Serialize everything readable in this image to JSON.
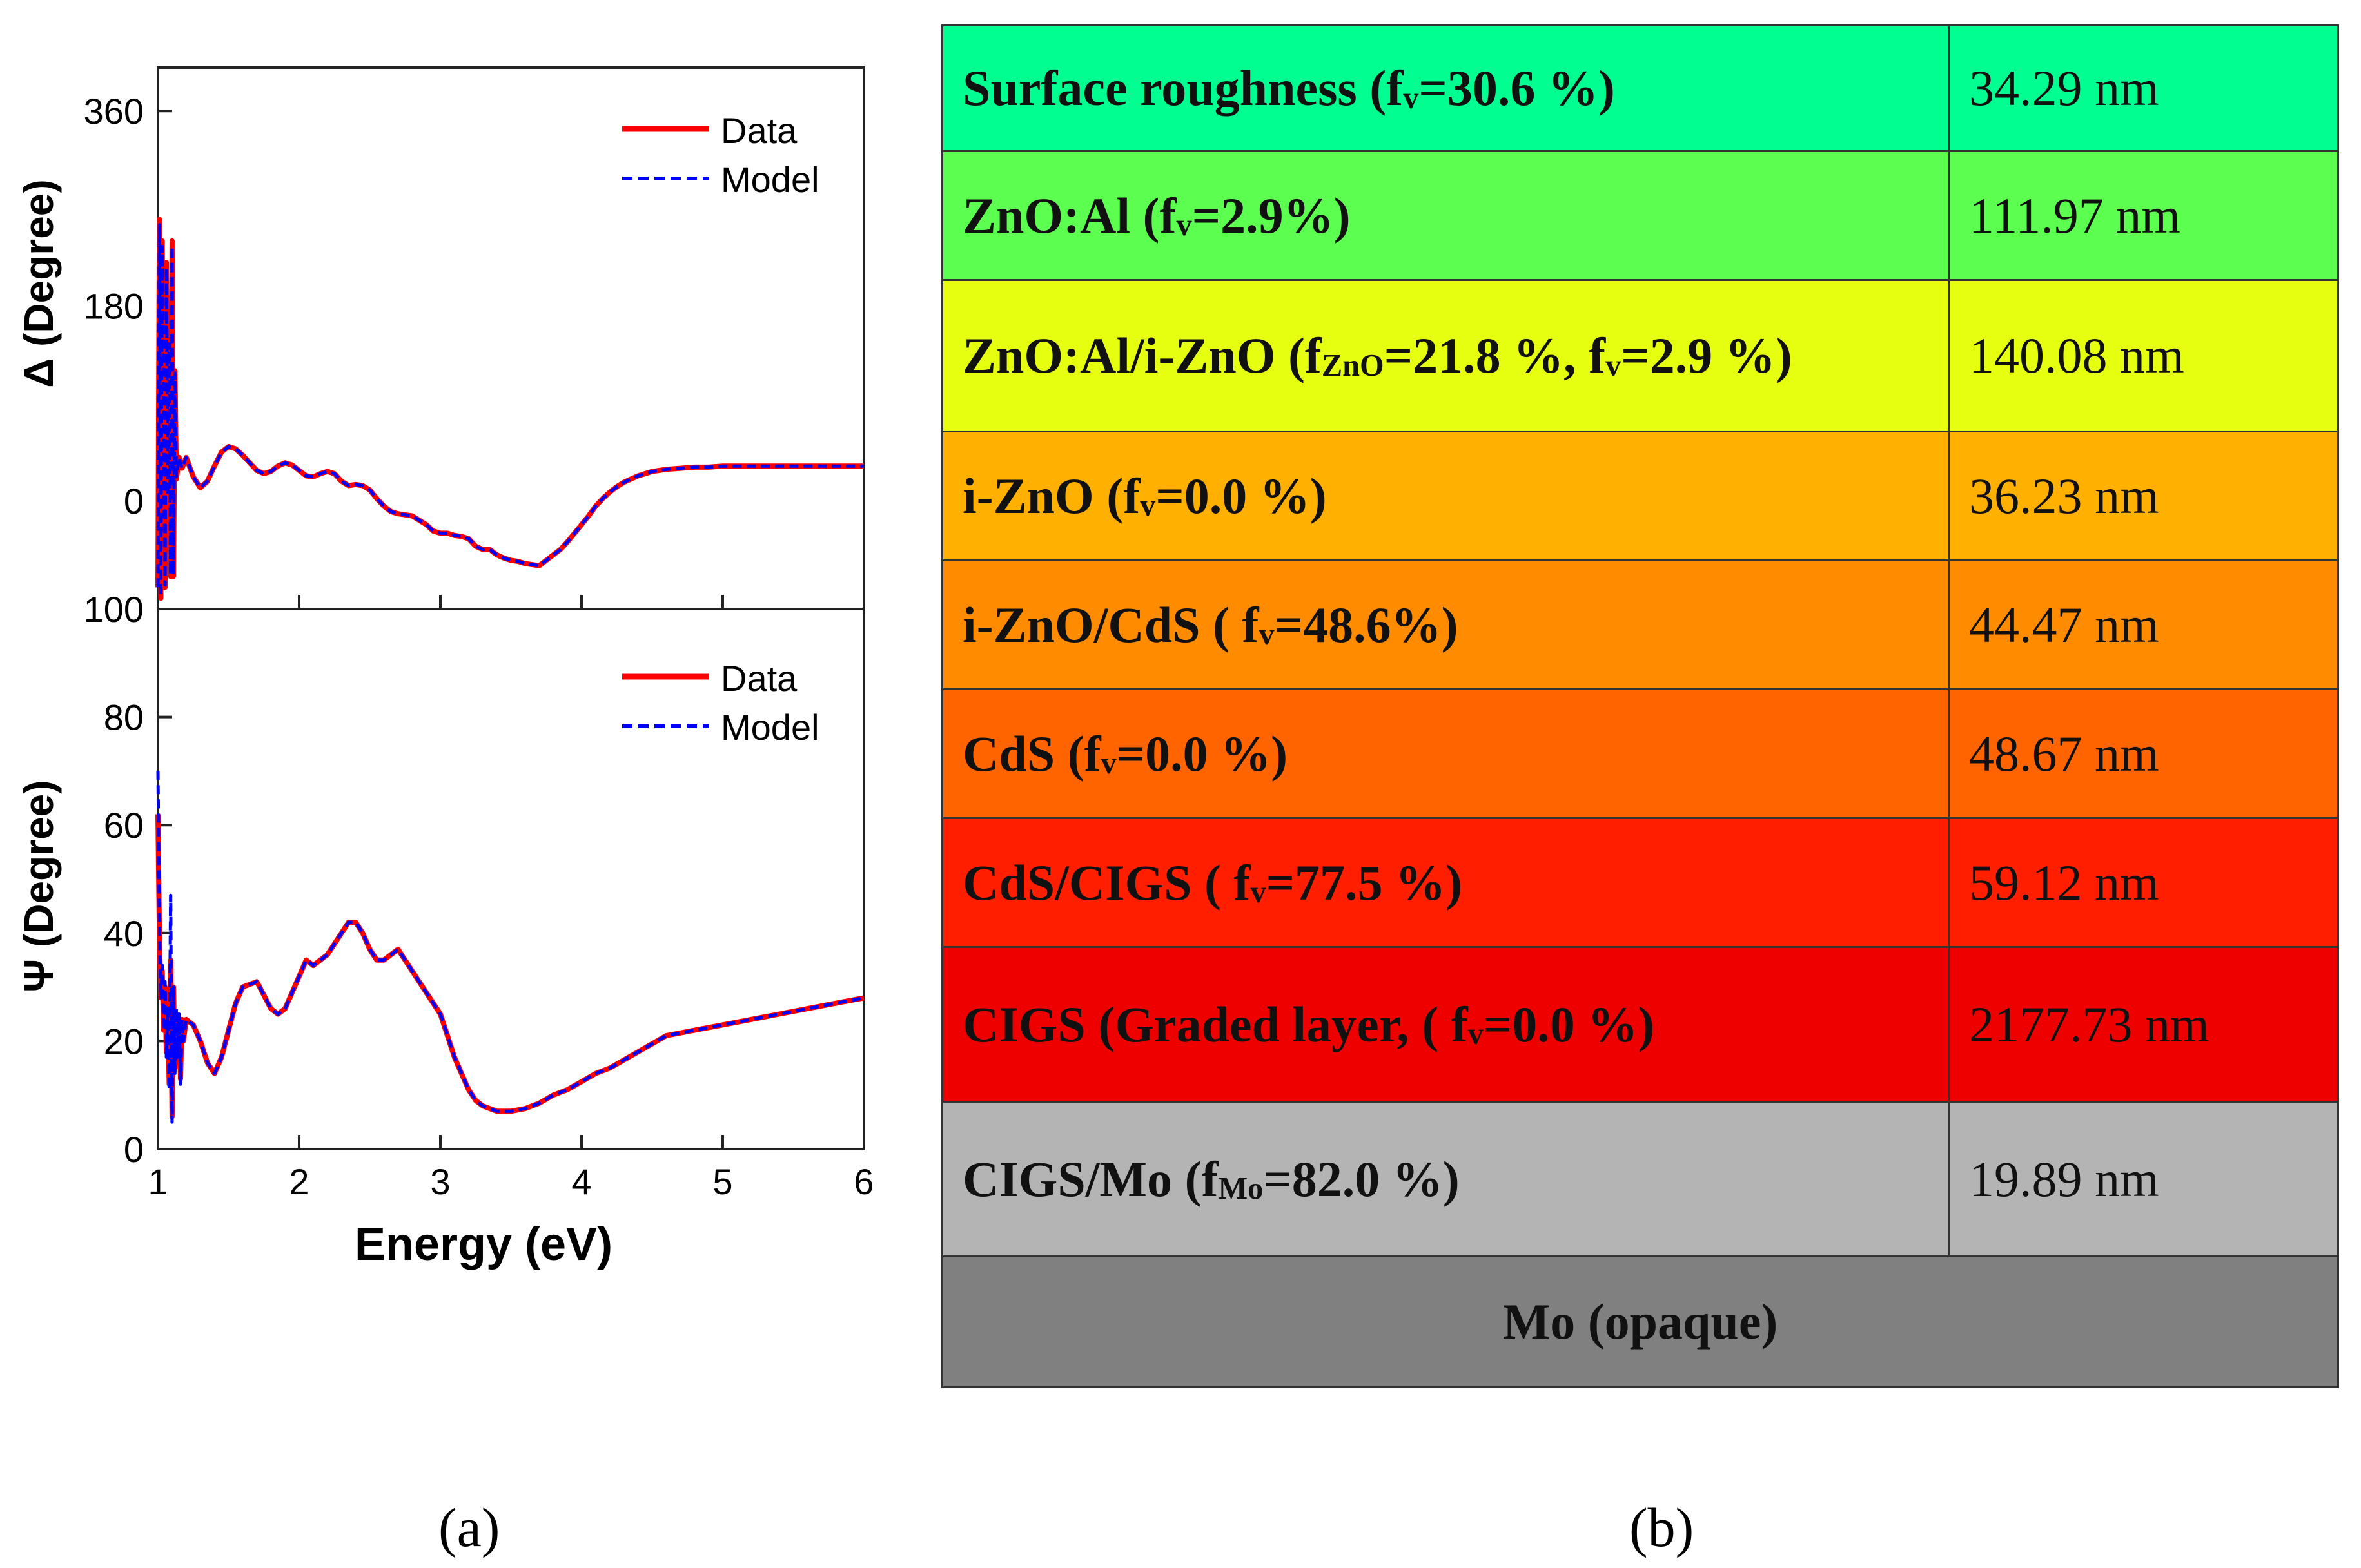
{
  "panel_labels": {
    "a": "(a)",
    "b": "(b)"
  },
  "chart_data": [
    {
      "type": "line",
      "panel": "a-top",
      "title": "",
      "xlabel": "",
      "ylabel": "Δ (Degree)",
      "xlim": [
        1,
        6
      ],
      "ylim": [
        -100,
        400
      ],
      "yticks": [
        0,
        180,
        360
      ],
      "ytick_labels": [
        "0",
        "180",
        "360"
      ],
      "legend": {
        "position": "top-right",
        "entries": [
          "Data",
          "Model"
        ]
      },
      "series": [
        {
          "name": "Data",
          "color": "#ff0000",
          "style": "solid",
          "x": [
            1.0,
            1.01,
            1.02,
            1.03,
            1.04,
            1.05,
            1.06,
            1.07,
            1.08,
            1.09,
            1.1,
            1.11,
            1.12,
            1.13,
            1.15,
            1.17,
            1.2,
            1.25,
            1.3,
            1.35,
            1.4,
            1.45,
            1.5,
            1.55,
            1.6,
            1.65,
            1.7,
            1.75,
            1.8,
            1.85,
            1.9,
            1.95,
            2.0,
            2.05,
            2.1,
            2.15,
            2.2,
            2.25,
            2.3,
            2.35,
            2.4,
            2.45,
            2.5,
            2.55,
            2.6,
            2.65,
            2.7,
            2.75,
            2.8,
            2.85,
            2.9,
            2.95,
            3.0,
            3.05,
            3.1,
            3.15,
            3.2,
            3.25,
            3.3,
            3.35,
            3.4,
            3.45,
            3.5,
            3.55,
            3.6,
            3.65,
            3.7,
            3.75,
            3.8,
            3.85,
            3.9,
            3.95,
            4.0,
            4.05,
            4.1,
            4.15,
            4.2,
            4.25,
            4.3,
            4.35,
            4.4,
            4.45,
            4.5,
            4.6,
            4.7,
            4.8,
            4.9,
            5.0,
            5.2,
            5.4,
            5.6,
            5.8,
            6.0
          ],
          "y": [
            -80,
            260,
            -90,
            240,
            40,
            -80,
            220,
            0,
            150,
            -70,
            240,
            -70,
            120,
            20,
            40,
            30,
            40,
            22,
            12,
            18,
            32,
            45,
            50,
            48,
            42,
            35,
            28,
            25,
            27,
            32,
            35,
            33,
            28,
            23,
            22,
            25,
            27,
            25,
            18,
            14,
            15,
            14,
            10,
            2,
            -5,
            -10,
            -12,
            -13,
            -14,
            -18,
            -22,
            -28,
            -30,
            -30,
            -32,
            -33,
            -35,
            -42,
            -45,
            -45,
            -50,
            -53,
            -55,
            -56,
            -58,
            -59,
            -60,
            -55,
            -50,
            -45,
            -38,
            -30,
            -22,
            -14,
            -5,
            2,
            8,
            13,
            17,
            20,
            23,
            25,
            27,
            29,
            30,
            31,
            31,
            32,
            32,
            32,
            32,
            32,
            32
          ]
        },
        {
          "name": "Model",
          "color": "#0000ff",
          "style": "dashed",
          "x": [
            1.0,
            1.01,
            1.02,
            1.03,
            1.04,
            1.05,
            1.06,
            1.07,
            1.08,
            1.09,
            1.1,
            1.11,
            1.12,
            1.13,
            1.15,
            1.17,
            1.2,
            1.25,
            1.3,
            1.35,
            1.4,
            1.45,
            1.5,
            1.55,
            1.6,
            1.65,
            1.7,
            1.75,
            1.8,
            1.85,
            1.9,
            1.95,
            2.0,
            2.05,
            2.1,
            2.15,
            2.2,
            2.25,
            2.3,
            2.35,
            2.4,
            2.45,
            2.5,
            2.55,
            2.6,
            2.65,
            2.7,
            2.75,
            2.8,
            2.85,
            2.9,
            2.95,
            3.0,
            3.05,
            3.1,
            3.15,
            3.2,
            3.25,
            3.3,
            3.35,
            3.4,
            3.45,
            3.5,
            3.55,
            3.6,
            3.65,
            3.7,
            3.75,
            3.8,
            3.85,
            3.9,
            3.95,
            4.0,
            4.05,
            4.1,
            4.15,
            4.2,
            4.25,
            4.3,
            4.35,
            4.4,
            4.45,
            4.5,
            4.6,
            4.7,
            4.8,
            4.9,
            5.0,
            5.2,
            5.4,
            5.6,
            5.8,
            6.0
          ],
          "y": [
            -80,
            255,
            -88,
            235,
            45,
            -78,
            215,
            5,
            145,
            -68,
            235,
            -68,
            118,
            22,
            40,
            30,
            40,
            22,
            12,
            18,
            32,
            45,
            50,
            48,
            42,
            35,
            28,
            25,
            27,
            32,
            35,
            33,
            28,
            23,
            22,
            25,
            27,
            25,
            18,
            14,
            15,
            14,
            10,
            2,
            -5,
            -10,
            -12,
            -13,
            -14,
            -18,
            -22,
            -28,
            -30,
            -30,
            -32,
            -33,
            -35,
            -42,
            -45,
            -45,
            -50,
            -53,
            -55,
            -56,
            -58,
            -59,
            -60,
            -55,
            -50,
            -45,
            -38,
            -30,
            -22,
            -14,
            -5,
            2,
            8,
            13,
            17,
            20,
            23,
            25,
            27,
            29,
            30,
            31,
            31,
            32,
            32,
            32,
            32,
            32,
            32
          ]
        }
      ]
    },
    {
      "type": "line",
      "panel": "a-bottom",
      "title": "",
      "xlabel": "Energy (eV)",
      "ylabel": "Ψ (Degree)",
      "xlim": [
        1,
        6
      ],
      "ylim": [
        0,
        100
      ],
      "xticks": [
        1,
        2,
        3,
        4,
        5,
        6
      ],
      "xtick_labels": [
        "1",
        "2",
        "3",
        "4",
        "5",
        "6"
      ],
      "yticks": [
        0,
        20,
        40,
        60,
        80,
        100
      ],
      "ytick_labels": [
        "0",
        "20",
        "40",
        "60",
        "80",
        "100"
      ],
      "legend": {
        "position": "top-right",
        "entries": [
          "Data",
          "Model"
        ]
      },
      "series": [
        {
          "name": "Data",
          "color": "#ff0000",
          "style": "solid",
          "x": [
            1.0,
            1.01,
            1.02,
            1.03,
            1.04,
            1.05,
            1.06,
            1.07,
            1.08,
            1.09,
            1.1,
            1.11,
            1.12,
            1.13,
            1.14,
            1.15,
            1.16,
            1.17,
            1.18,
            1.2,
            1.25,
            1.3,
            1.35,
            1.4,
            1.45,
            1.5,
            1.55,
            1.6,
            1.7,
            1.8,
            1.85,
            1.9,
            1.95,
            2.0,
            2.05,
            2.1,
            2.2,
            2.3,
            2.35,
            2.4,
            2.45,
            2.5,
            2.55,
            2.6,
            2.65,
            2.7,
            2.8,
            2.9,
            3.0,
            3.05,
            3.1,
            3.15,
            3.2,
            3.25,
            3.3,
            3.4,
            3.5,
            3.6,
            3.7,
            3.8,
            3.9,
            4.0,
            4.1,
            4.2,
            4.3,
            4.4,
            4.5,
            4.6,
            4.8,
            5.0,
            5.2,
            5.4,
            5.6,
            5.8,
            6.0
          ],
          "y": [
            62,
            40,
            28,
            33,
            22,
            30,
            18,
            25,
            12,
            35,
            6,
            30,
            15,
            25,
            18,
            24,
            13,
            24,
            20,
            24,
            23,
            20,
            16,
            14,
            17,
            22,
            27,
            30,
            31,
            26,
            25,
            26,
            29,
            32,
            35,
            34,
            36,
            40,
            42,
            42,
            40,
            37,
            35,
            35,
            36,
            37,
            33,
            29,
            25,
            21,
            17,
            14,
            11,
            9,
            8,
            7,
            7,
            7.5,
            8.5,
            10,
            11,
            12.5,
            14,
            15,
            16.5,
            18,
            19.5,
            21,
            22,
            23,
            24,
            25,
            26,
            27,
            28
          ],
          "x_note": "",
          "y_note": ""
        },
        {
          "name": "Model",
          "color": "#0000ff",
          "style": "dashed",
          "x": [
            1.0,
            1.01,
            1.02,
            1.03,
            1.04,
            1.05,
            1.06,
            1.07,
            1.08,
            1.09,
            1.1,
            1.11,
            1.12,
            1.13,
            1.14,
            1.15,
            1.16,
            1.17,
            1.18,
            1.2,
            1.25,
            1.3,
            1.35,
            1.4,
            1.45,
            1.5,
            1.55,
            1.6,
            1.7,
            1.8,
            1.85,
            1.9,
            1.95,
            2.0,
            2.05,
            2.1,
            2.2,
            2.3,
            2.35,
            2.4,
            2.45,
            2.5,
            2.55,
            2.6,
            2.65,
            2.7,
            2.8,
            2.9,
            3.0,
            3.05,
            3.1,
            3.15,
            3.2,
            3.25,
            3.3,
            3.4,
            3.5,
            3.6,
            3.7,
            3.8,
            3.9,
            4.0,
            4.1,
            4.2,
            4.3,
            4.4,
            4.5,
            4.6,
            4.8,
            5.0,
            5.2,
            5.4,
            5.6,
            5.8,
            6.0
          ],
          "y": [
            70,
            42,
            28,
            34,
            22,
            31,
            17,
            26,
            11,
            47,
            5,
            30,
            14,
            26,
            17,
            25,
            12,
            24,
            20,
            24,
            23,
            20,
            16,
            14,
            17,
            22,
            27,
            30,
            31,
            26,
            25,
            26,
            29,
            32,
            35,
            34,
            36,
            40,
            42,
            42,
            40,
            37,
            35,
            35,
            36,
            37,
            33,
            29,
            25,
            21,
            17,
            14,
            11,
            9,
            8,
            7,
            7,
            7.5,
            8.5,
            10,
            11,
            12.5,
            14,
            15,
            16.5,
            18,
            19.5,
            21,
            22,
            23,
            24,
            25,
            26,
            27,
            28
          ]
        }
      ]
    },
    {
      "type": "table",
      "panel": "b",
      "rows": [
        {
          "name": {
            "pre": "Surface roughness (f",
            "sub": "v",
            "post": "=30.6 %)"
          },
          "thickness": "34.29 nm",
          "color": "#00ff90"
        },
        {
          "name": {
            "pre": "ZnO:Al (f",
            "sub": "v",
            "post": "=2.9%)"
          },
          "thickness": "111.97 nm",
          "color": "#5cff50"
        },
        {
          "name": {
            "pre": "ZnO:Al/i-ZnO (f",
            "sub": "ZnO",
            "mid": "=21.8 %, f",
            "sub2": "v",
            "post": "=2.9 %)"
          },
          "thickness": "140.08 nm",
          "color": "#e6ff10"
        },
        {
          "name": {
            "pre": "i-ZnO (f",
            "sub": "v",
            "post": "=0.0 %)"
          },
          "thickness": "36.23 nm",
          "color": "#ffb000"
        },
        {
          "name": {
            "pre": "i-ZnO/CdS ( f",
            "sub": "v",
            "post": "=48.6%)"
          },
          "thickness": "44.47 nm",
          "color": "#ff8c00"
        },
        {
          "name": {
            "pre": "CdS (f",
            "sub": "v",
            "post": "=0.0 %)"
          },
          "thickness": "48.67 nm",
          "color": "#ff6400"
        },
        {
          "name": {
            "pre": "CdS/CIGS ( f",
            "sub": "v",
            "post": "=77.5 %)"
          },
          "thickness": "59.12 nm",
          "color": "#ff1e00"
        },
        {
          "name": {
            "pre": "CIGS (Graded layer, ( f",
            "sub": "v",
            "post": "=0.0 %)"
          },
          "thickness": "2177.73 nm",
          "color": "#ee0000"
        },
        {
          "name": {
            "pre": "CIGS/Mo (f",
            "sub": "Mo",
            "post": "=82.0 %)"
          },
          "thickness": "19.89 nm",
          "color": "#b4b4b4"
        }
      ],
      "substrate": {
        "label": "Mo (opaque)",
        "color": "#808080"
      }
    }
  ]
}
